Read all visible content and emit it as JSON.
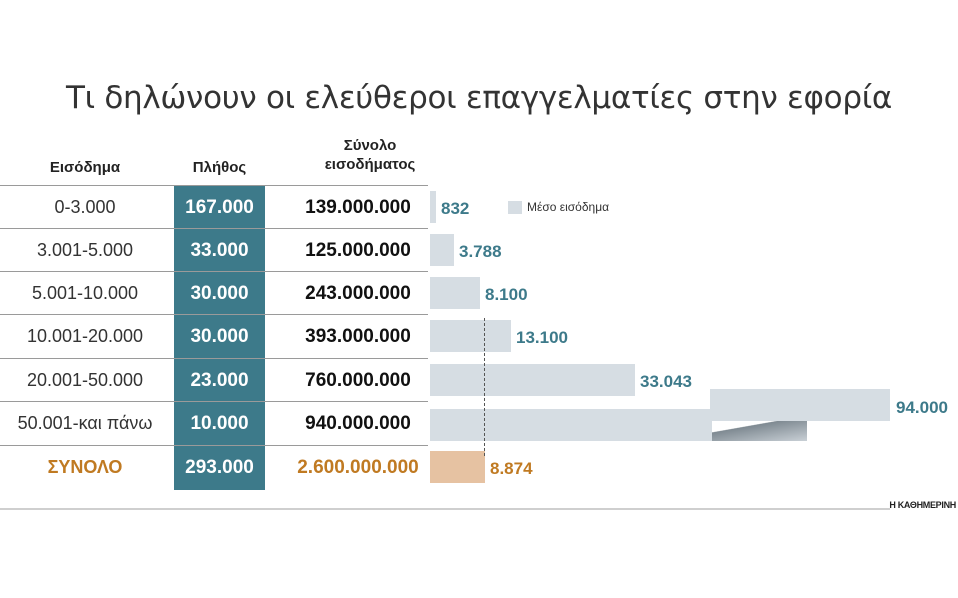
{
  "title": "Τι δηλώνουν οι ελεύθεροι επαγγελματίες στην εφορία",
  "headers": {
    "income": "Εισόδημα",
    "count": "Πλήθος",
    "total_line1": "Σύνολο",
    "total_line2": "εισοδήματος"
  },
  "legend": {
    "label": "Μέσο εισόδημα"
  },
  "colors": {
    "teal": "#3d7a8a",
    "bar": "#d6dde3",
    "average_bar": "#e6c2a2",
    "total_text": "#c07a22"
  },
  "rows": [
    {
      "range": "0-3.000",
      "count": "167.000",
      "total_income": "139.000.000",
      "average": "832"
    },
    {
      "range": "3.001-5.000",
      "count": "33.000",
      "total_income": "125.000.000",
      "average": "3.788"
    },
    {
      "range": "5.001-10.000",
      "count": "30.000",
      "total_income": "243.000.000",
      "average": "8.100"
    },
    {
      "range": "10.001-20.000",
      "count": "30.000",
      "total_income": "393.000.000",
      "average": "13.100"
    },
    {
      "range": "20.001-50.000",
      "count": "23.000",
      "total_income": "760.000.000",
      "average": "33.043"
    },
    {
      "range": "50.001-και πάνω",
      "count": "10.000",
      "total_income": "940.000.000",
      "average": "94.000"
    }
  ],
  "totals": {
    "label": "ΣΥΝΟΛΟ",
    "count": "293.000",
    "total_income": "2.600.000.000",
    "average": "8.874"
  },
  "source": "Η ΚΑΘΗΜΕΡΙΝΗ",
  "chart_data": {
    "type": "bar",
    "orientation": "horizontal",
    "title": "Τι δηλώνουν οι ελεύθεροι επαγγελματίες στην εφορία",
    "categories": [
      "0-3.000",
      "3.001-5.000",
      "5.001-10.000",
      "10.001-20.000",
      "20.001-50.000",
      "50.001-και πάνω",
      "ΣΥΝΟΛΟ"
    ],
    "series": [
      {
        "name": "Μέσο εισόδημα",
        "values": [
          832,
          3788,
          8100,
          13100,
          33043,
          94000,
          8874
        ]
      }
    ],
    "table": {
      "Πλήθος": [
        167000,
        33000,
        30000,
        30000,
        23000,
        10000,
        293000
      ],
      "Σύνολο εισοδήματος": [
        139000000,
        125000000,
        243000000,
        393000000,
        760000000,
        940000000,
        2600000000
      ]
    },
    "reference_line": 8874,
    "legend_position": "top-right"
  }
}
